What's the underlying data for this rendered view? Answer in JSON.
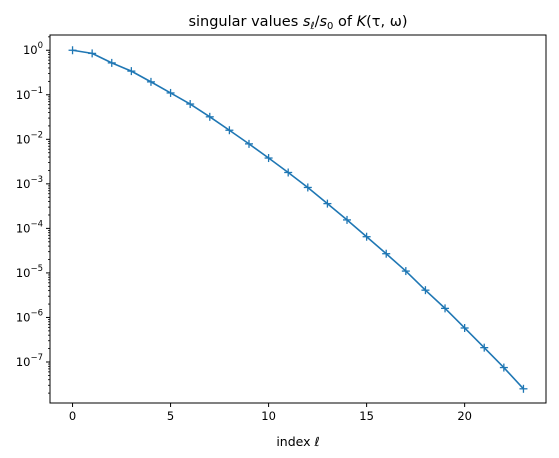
{
  "chart_data": {
    "type": "line",
    "title": "singular values s_ℓ/s_0 of K(τ, ω)",
    "title_parts": {
      "prefix": "singular values ",
      "s": "s",
      "sub_l": "ℓ",
      "slash": "/",
      "sub_0": "0",
      "of": " of ",
      "func": "K",
      "args": "(τ, ω)"
    },
    "xlabel": "index ℓ",
    "xlabel_parts": {
      "prefix": "index ",
      "var": "ℓ"
    },
    "ylabel": "",
    "yscale": "log",
    "xlim": [
      -1.15,
      24.15
    ],
    "ylim": [
      1.2e-08,
      2.2
    ],
    "x_ticks": [
      0,
      5,
      10,
      15,
      20
    ],
    "y_ticks": [
      {
        "value": 1,
        "base": "10",
        "exp": "0"
      },
      {
        "value": 0.1,
        "base": "10",
        "exp": "−1"
      },
      {
        "value": 0.01,
        "base": "10",
        "exp": "−2"
      },
      {
        "value": 0.001,
        "base": "10",
        "exp": "−3"
      },
      {
        "value": 0.0001,
        "base": "10",
        "exp": "−4"
      },
      {
        "value": 1e-05,
        "base": "10",
        "exp": "−5"
      },
      {
        "value": 1e-06,
        "base": "10",
        "exp": "−6"
      },
      {
        "value": 1e-07,
        "base": "10",
        "exp": "−7"
      }
    ],
    "grid": false,
    "legend": "none",
    "series": [
      {
        "color": "#1f77b4",
        "marker": "plus",
        "x": [
          0,
          1,
          2,
          3,
          4,
          5,
          6,
          7,
          8,
          9,
          10,
          11,
          12,
          13,
          14,
          15,
          16,
          17,
          18,
          19,
          20,
          21,
          22,
          23
        ],
        "y": [
          1.0,
          0.85,
          0.52,
          0.34,
          0.195,
          0.11,
          0.062,
          0.032,
          0.016,
          0.0079,
          0.0038,
          0.0018,
          0.00083,
          0.00036,
          0.000155,
          6.5e-05,
          2.7e-05,
          1.1e-05,
          4.1e-06,
          1.6e-06,
          5.8e-07,
          2.1e-07,
          7.5e-08,
          2.5e-08
        ]
      }
    ]
  }
}
